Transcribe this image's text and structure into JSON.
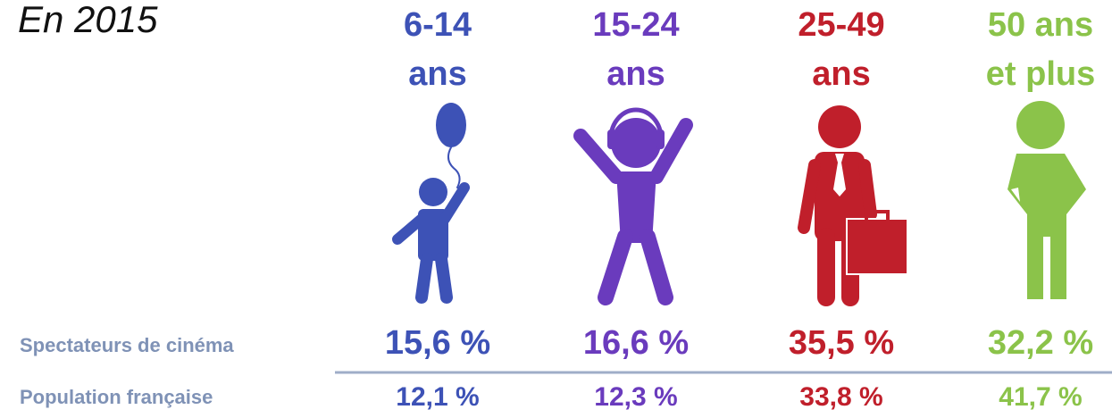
{
  "title": "En 2015",
  "rows": [
    "Spectateurs de cinéma",
    "Population française"
  ],
  "groups": [
    {
      "label": [
        "6-14",
        "ans"
      ],
      "color": "#3d52b6",
      "values": [
        "15,6 %",
        "12,1 %"
      ]
    },
    {
      "label": [
        "15-24",
        "ans"
      ],
      "color": "#6a3bbd",
      "values": [
        "16,6 %",
        "12,3 %"
      ]
    },
    {
      "label": [
        "25-49",
        "ans"
      ],
      "color": "#c01f2b",
      "values": [
        "35,5 %",
        "33,8 %"
      ]
    },
    {
      "label": [
        "50 ans",
        "et plus"
      ],
      "color": "#8bc34a",
      "values": [
        "32,2 %",
        "41,7 %"
      ]
    }
  ]
}
